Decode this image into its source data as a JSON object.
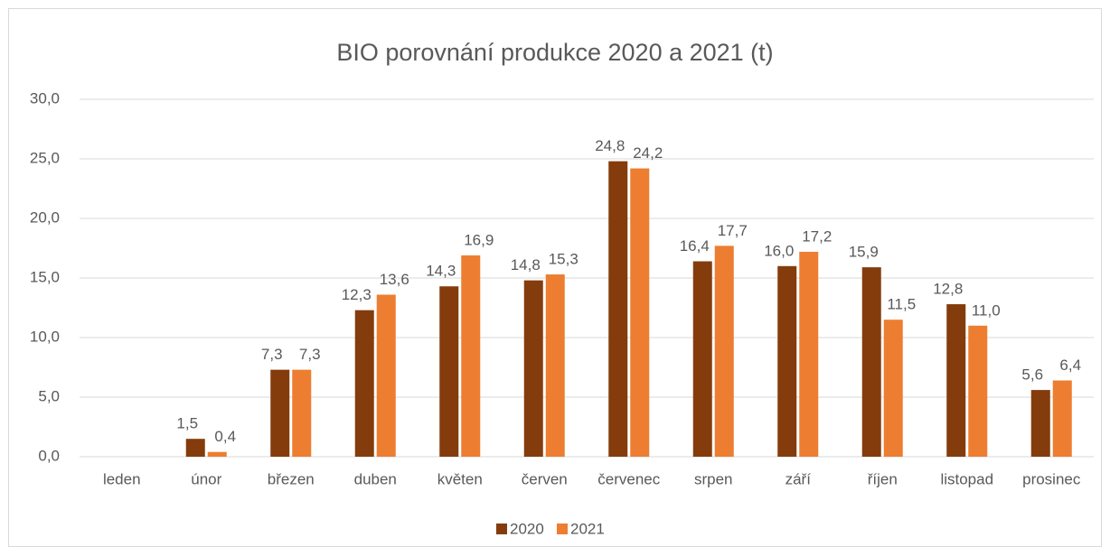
{
  "chart_data": {
    "type": "bar",
    "title": "BIO porovnání produkce 2020 a 2021 (t)",
    "categories": [
      "leden",
      "únor",
      "březen",
      "duben",
      "květen",
      "červen",
      "červenec",
      "srpen",
      "září",
      "říjen",
      "listopad",
      "prosinec"
    ],
    "series": [
      {
        "name": "2020",
        "color": "#843c0c",
        "values": [
          null,
          1.5,
          7.3,
          12.3,
          14.3,
          14.8,
          24.8,
          16.4,
          16.0,
          15.9,
          12.8,
          5.6
        ],
        "value_labels": [
          null,
          "1,5",
          "7,3",
          "12,3",
          "14,3",
          "14,8",
          "24,8",
          "16,4",
          "16,0",
          "15,9",
          "12,8",
          "5,6"
        ]
      },
      {
        "name": "2021",
        "color": "#ed7d31",
        "values": [
          null,
          0.4,
          7.3,
          13.6,
          16.9,
          15.3,
          24.2,
          17.7,
          17.2,
          11.5,
          11.0,
          6.4
        ],
        "value_labels": [
          null,
          "0,4",
          "7,3",
          "13,6",
          "16,9",
          "15,3",
          "24,2",
          "17,7",
          "17,2",
          "11,5",
          "11,0",
          "6,4"
        ]
      }
    ],
    "ylim": [
      0,
      30
    ],
    "yticks": [
      {
        "value": 0,
        "label": "0,0"
      },
      {
        "value": 5,
        "label": "5,0"
      },
      {
        "value": 10,
        "label": "10,0"
      },
      {
        "value": 15,
        "label": "15,0"
      },
      {
        "value": 20,
        "label": "20,0"
      },
      {
        "value": 25,
        "label": "25,0"
      },
      {
        "value": 30,
        "label": "30,0"
      }
    ],
    "grid": true,
    "legend": "bottom"
  }
}
